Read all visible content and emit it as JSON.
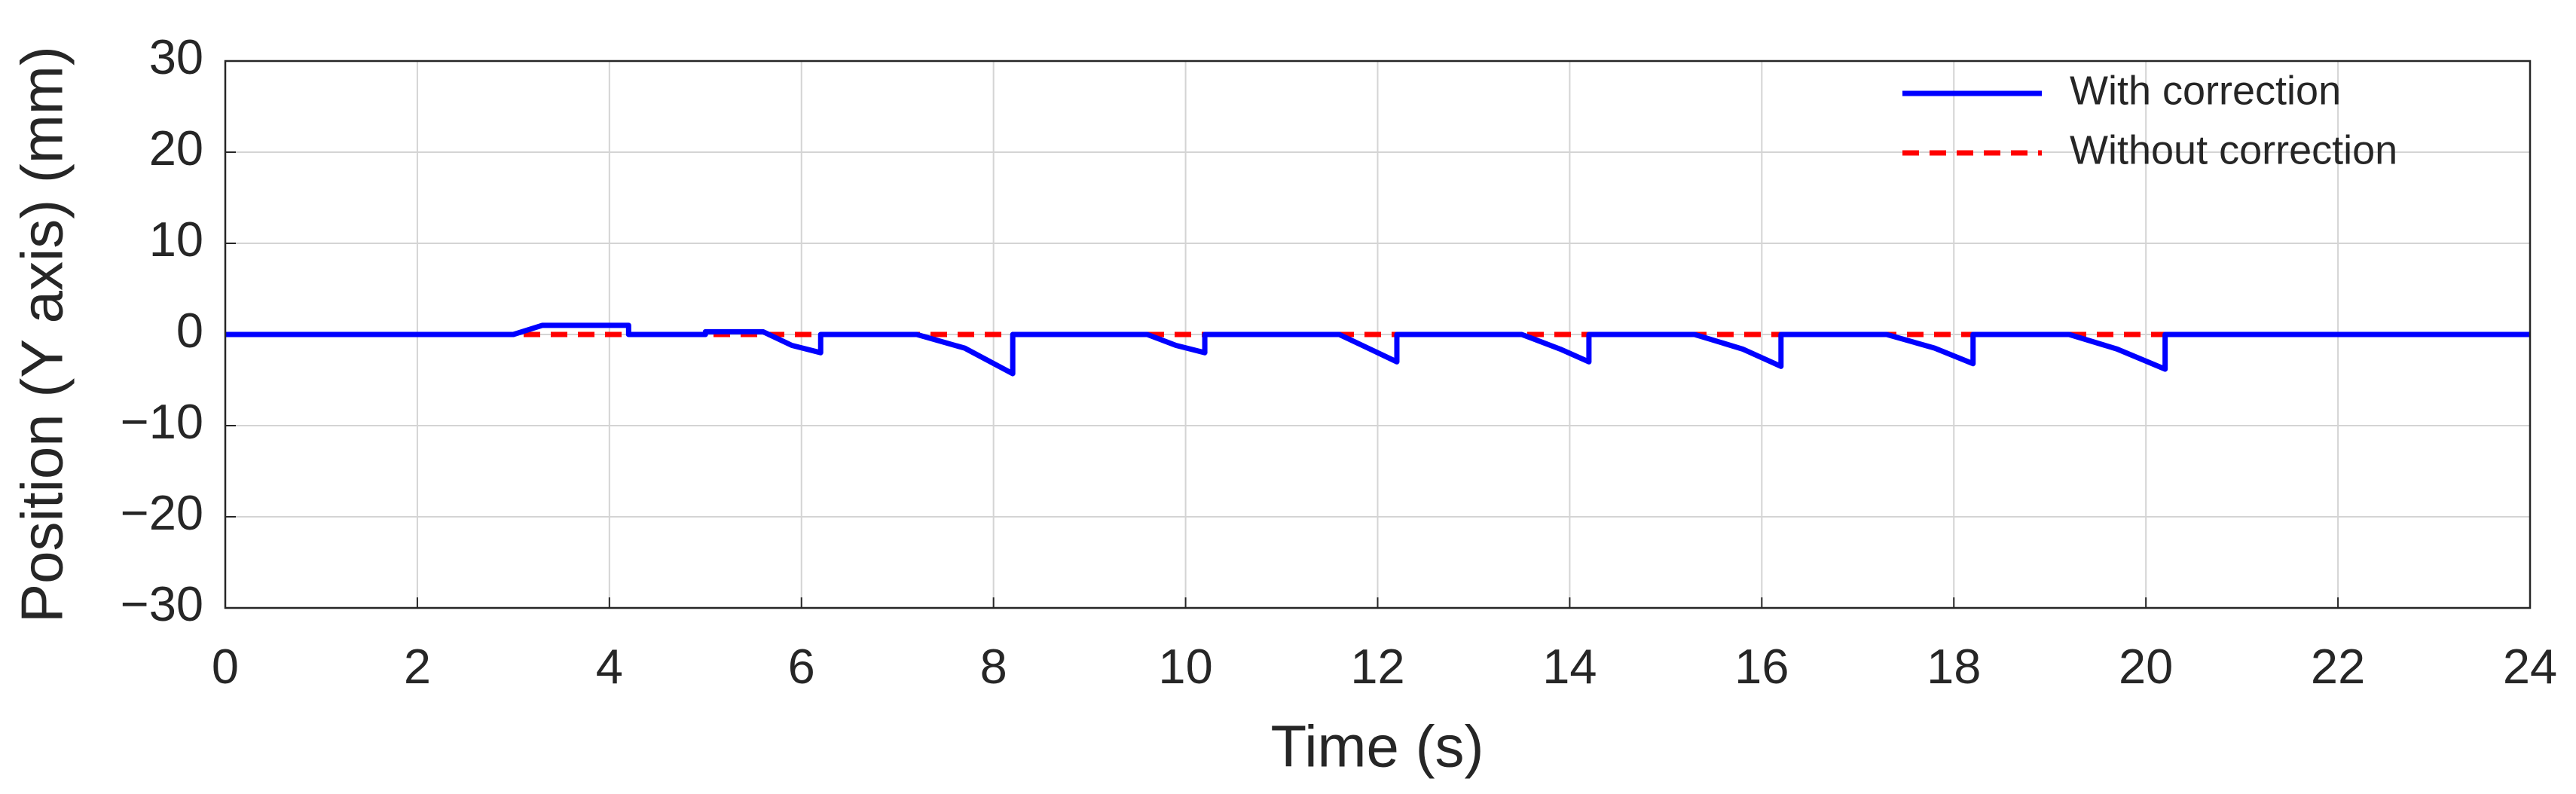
{
  "chart_data": {
    "type": "line",
    "xlabel": "Time (s)",
    "ylabel": "Position (Y axis) (mm)",
    "xlim": [
      0,
      24
    ],
    "xticks": [
      0,
      2,
      4,
      6,
      8,
      10,
      12,
      14,
      16,
      18,
      20,
      22,
      24
    ],
    "ylim": [
      -30,
      30
    ],
    "yticks": [
      {
        "value": -30,
        "label": "−30"
      },
      {
        "value": -20,
        "label": "−20"
      },
      {
        "value": -10,
        "label": "−10"
      },
      0,
      10,
      20,
      30
    ],
    "grid": true,
    "legend": "upper right",
    "series": [
      {
        "name": "With correction",
        "color": "#0000ff",
        "linestyle": "solid",
        "x": [
          0,
          3.0,
          3.3,
          4.2,
          4.2,
          5.0,
          5.0,
          5.6,
          5.9,
          6.2,
          6.2,
          7.2,
          7.7,
          8.2,
          8.2,
          9.6,
          9.9,
          10.2,
          10.2,
          11.6,
          11.9,
          12.2,
          12.2,
          13.5,
          13.9,
          14.2,
          14.2,
          15.3,
          15.8,
          16.2,
          16.2,
          17.3,
          17.8,
          18.2,
          18.2,
          19.2,
          19.7,
          20.2,
          20.2,
          24
        ],
        "values": [
          0,
          0,
          1,
          1,
          0,
          0,
          0.3,
          0.3,
          -1.2,
          -2,
          0,
          0,
          -1.5,
          -4.3,
          0,
          0,
          -1.2,
          -2,
          0,
          0,
          -1.5,
          -3,
          0,
          0,
          -1.6,
          -3,
          0,
          0,
          -1.6,
          -3.5,
          0,
          0,
          -1.5,
          -3.2,
          0,
          0,
          -1.6,
          -3.8,
          0,
          0
        ]
      },
      {
        "name": "Without correction",
        "color": "#ff0000",
        "linestyle": "dashed",
        "x": [
          0,
          24
        ],
        "values": [
          0,
          0
        ]
      }
    ]
  }
}
